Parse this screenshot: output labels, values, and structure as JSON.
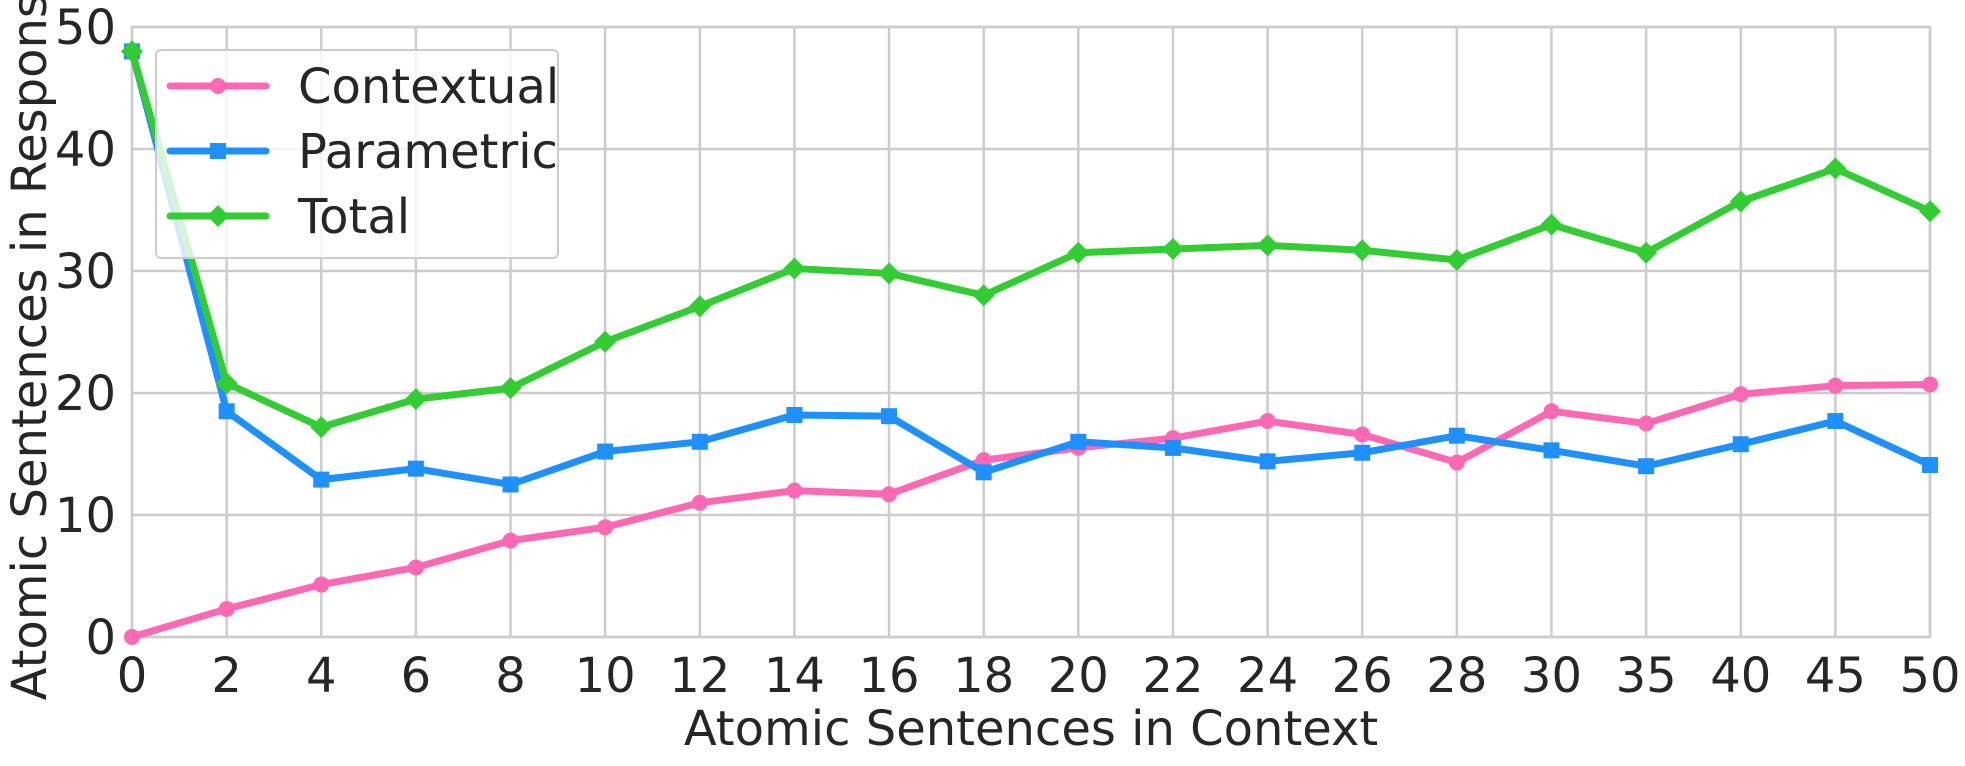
{
  "chart_data": {
    "type": "line",
    "xlabel": "Atomic Sentences in Context",
    "ylabel": "Atomic Sentences in Response",
    "categories": [
      "0",
      "2",
      "4",
      "6",
      "8",
      "10",
      "12",
      "14",
      "16",
      "18",
      "20",
      "22",
      "24",
      "26",
      "28",
      "30",
      "35",
      "40",
      "45",
      "50"
    ],
    "ylim": [
      0,
      50
    ],
    "yticks": [
      0,
      10,
      20,
      30,
      40,
      50
    ],
    "grid": true,
    "legend_position": "top-left",
    "series": [
      {
        "name": "Contextual",
        "color": "#ff69b4",
        "marker": "circle",
        "values": [
          0,
          2.3,
          4.3,
          5.7,
          7.9,
          9.0,
          11.0,
          12.0,
          11.7,
          14.5,
          15.5,
          16.3,
          17.7,
          16.6,
          14.3,
          18.5,
          17.5,
          19.9,
          20.6,
          20.7
        ]
      },
      {
        "name": "Parametric",
        "color": "#1e90ff",
        "marker": "square",
        "values": [
          48.0,
          18.5,
          12.9,
          13.8,
          12.5,
          15.2,
          16.0,
          18.2,
          18.1,
          13.5,
          16.0,
          15.5,
          14.4,
          15.1,
          16.5,
          15.3,
          14.0,
          15.8,
          17.7,
          14.1
        ]
      },
      {
        "name": "Total",
        "color": "#32cd32",
        "marker": "diamond",
        "values": [
          48.0,
          20.8,
          17.2,
          19.5,
          20.4,
          24.2,
          27.1,
          30.2,
          29.8,
          28.0,
          31.5,
          31.8,
          32.1,
          31.7,
          30.9,
          33.8,
          31.5,
          35.7,
          38.4,
          34.9
        ]
      }
    ]
  }
}
